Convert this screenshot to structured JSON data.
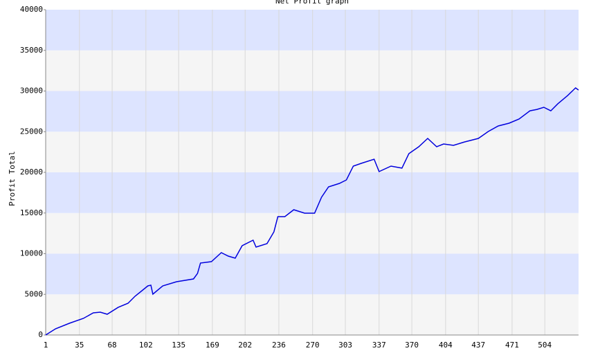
{
  "chart_data": {
    "type": "line",
    "title": "Net Profit graph",
    "y_label": "Profit Total",
    "x": [
      1,
      11,
      25,
      39,
      49,
      56,
      63,
      74,
      84,
      91,
      98,
      104,
      107,
      109,
      119,
      133,
      150,
      154,
      157,
      168,
      178,
      185,
      192,
      199,
      210,
      213,
      224,
      231,
      235,
      242,
      251,
      262,
      272,
      279,
      286,
      297,
      304,
      311,
      319,
      332,
      337,
      349,
      360,
      367,
      377,
      386,
      395,
      402,
      412,
      423,
      437,
      447,
      457,
      468,
      478,
      489,
      496,
      503,
      510,
      517,
      527,
      535,
      538
    ],
    "series": [
      {
        "name": "Profit Total",
        "color": "#0000dd",
        "values": [
          0,
          770,
          1450,
          2040,
          2720,
          2810,
          2550,
          3400,
          3910,
          4770,
          5450,
          6040,
          6130,
          5020,
          6040,
          6550,
          6890,
          7570,
          8850,
          9020,
          10130,
          9700,
          9450,
          10980,
          11660,
          10810,
          11230,
          12680,
          14550,
          14550,
          15400,
          14980,
          14980,
          16940,
          18210,
          18640,
          19060,
          20770,
          21110,
          21620,
          20090,
          20770,
          20520,
          22300,
          23150,
          24170,
          23150,
          23490,
          23320,
          23740,
          24170,
          25020,
          25700,
          26040,
          26550,
          27570,
          27740,
          28000,
          27570,
          28420,
          29440,
          30380,
          30120
        ]
      }
    ],
    "xlim": [
      1,
      538
    ],
    "xticks": [
      1,
      35,
      68,
      102,
      135,
      169,
      202,
      236,
      270,
      303,
      337,
      370,
      404,
      437,
      471,
      504
    ],
    "ylim": [
      0,
      40000
    ],
    "yticks": [
      0,
      5000,
      10000,
      15000,
      20000,
      25000,
      30000,
      35000,
      40000
    ],
    "grid": true,
    "band_colors": [
      "#f5f5f5",
      "#dde4ff"
    ]
  }
}
